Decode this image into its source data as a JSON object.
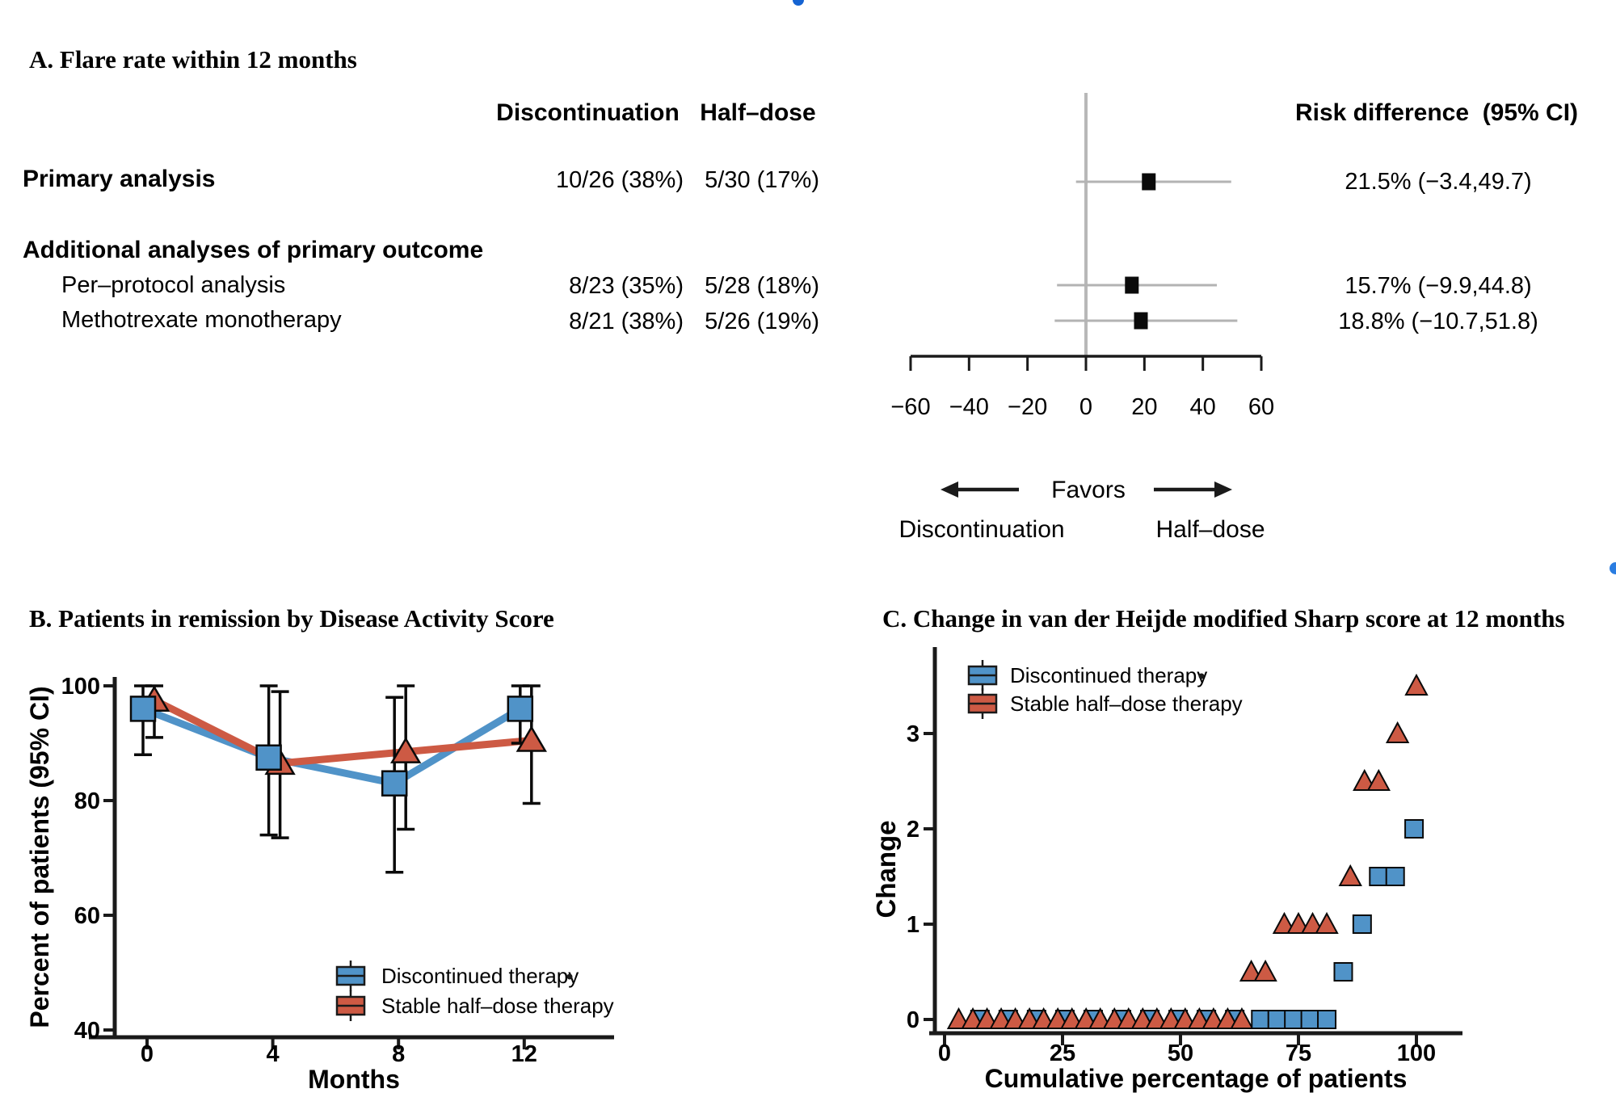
{
  "page": {
    "artifacts": {
      "top_dot_color": "#1563d2",
      "right_dot_color": "#2a7de1"
    },
    "colors": {
      "blue": "#5093c8",
      "red": "#cd5a44",
      "ci_gray": "#b3b3b3",
      "axis_black": "#1a1a1a"
    }
  },
  "chart_data": [
    {
      "id": "panel_a",
      "type": "table",
      "title": "A. Flare rate within 12 months",
      "columns": [
        "Discontinuation",
        "Half–dose",
        "Risk difference  (95% CI)"
      ],
      "rows": [
        {
          "label": "Primary analysis",
          "style": "bold",
          "discontinuation": "10/26 (38%)",
          "half_dose": "5/30 (17%)",
          "risk_text": "21.5% (−3.4,49.7)",
          "estimate": 21.5,
          "ci_low": -3.4,
          "ci_high": 49.7
        },
        {
          "label": "Additional analyses of primary outcome",
          "style": "section"
        },
        {
          "label": "Per–protocol analysis",
          "style": "indent",
          "discontinuation": "8/23 (35%)",
          "half_dose": "5/28 (18%)",
          "risk_text": "15.7% (−9.9,44.8)",
          "estimate": 15.7,
          "ci_low": -9.9,
          "ci_high": 44.8
        },
        {
          "label": "Methotrexate monotherapy",
          "style": "indent",
          "discontinuation": "8/21 (38%)",
          "half_dose": "5/26 (19%)",
          "risk_text": "18.8% (−10.7,51.8)",
          "estimate": 18.8,
          "ci_low": -10.7,
          "ci_high": 51.8
        }
      ],
      "forest": {
        "xticks": [
          -60,
          -40,
          -20,
          0,
          20,
          40,
          60
        ],
        "xlim": [
          -60,
          60
        ],
        "zero_line": 0,
        "favors_label": "Favors",
        "favors_left": "Discontinuation",
        "favors_right": "Half–dose"
      }
    },
    {
      "id": "panel_b",
      "type": "line",
      "title": "B. Patients in remission by Disease Activity Score",
      "xlabel": "Months",
      "ylabel": "Percent of patients (95% CI)",
      "x": [
        0,
        4,
        8,
        12
      ],
      "xticks": [
        0,
        4,
        8,
        12
      ],
      "yticks": [
        40,
        60,
        80,
        100
      ],
      "ylim": [
        37,
        103
      ],
      "legend_position": "bottom-right-inside",
      "legend_outlier_dot": true,
      "series": [
        {
          "name": "Discontinued therapy",
          "marker": "square",
          "color": "#5093c8",
          "values": [
            96,
            87.5,
            83,
            96
          ],
          "ci_low": [
            88,
            74,
            67.5,
            90
          ],
          "ci_high": [
            100,
            100,
            98,
            100
          ]
        },
        {
          "name": "Stable half–dose therapy",
          "marker": "triangle",
          "color": "#cd5a44",
          "values": [
            97.5,
            86.5,
            88.5,
            90.5
          ],
          "ci_low": [
            91,
            73.5,
            75,
            79.5
          ],
          "ci_high": [
            100,
            99,
            100,
            100
          ]
        }
      ]
    },
    {
      "id": "panel_c",
      "type": "scatter",
      "title": "C. Change in van der Heijde modified Sharp score at 12 months",
      "xlabel": "Cumulative percentage of patients",
      "ylabel": "Change",
      "xticks": [
        0,
        25,
        50,
        75,
        100
      ],
      "yticks": [
        0,
        1,
        2,
        3
      ],
      "xlim": [
        -2,
        110
      ],
      "ylim": [
        -0.3,
        3.7
      ],
      "legend_position": "top-left-inside",
      "legend_outlier_dot": true,
      "series": [
        {
          "name": "Discontinued therapy",
          "marker": "square",
          "color": "#5093c8",
          "points": [
            [
              7.5,
              0
            ],
            [
              13.5,
              0
            ],
            [
              19.5,
              0
            ],
            [
              25.5,
              0
            ],
            [
              31.5,
              0
            ],
            [
              37.5,
              0
            ],
            [
              43.5,
              0
            ],
            [
              49.5,
              0
            ],
            [
              55.5,
              0
            ],
            [
              61.5,
              0
            ],
            [
              67,
              0
            ],
            [
              70.5,
              0
            ],
            [
              74,
              0
            ],
            [
              77.5,
              0
            ],
            [
              81,
              0
            ],
            [
              84.5,
              0.5
            ],
            [
              88.5,
              1
            ],
            [
              92,
              1.5
            ],
            [
              95.5,
              1.5
            ],
            [
              99.5,
              2
            ]
          ]
        },
        {
          "name": "Stable half–dose therapy",
          "marker": "triangle",
          "color": "#cd5a44",
          "points": [
            [
              3,
              0
            ],
            [
              6,
              0
            ],
            [
              9,
              0
            ],
            [
              12,
              0
            ],
            [
              15,
              0
            ],
            [
              18,
              0
            ],
            [
              21,
              0
            ],
            [
              24,
              0
            ],
            [
              27,
              0
            ],
            [
              30,
              0
            ],
            [
              33,
              0
            ],
            [
              36,
              0
            ],
            [
              39,
              0
            ],
            [
              42,
              0
            ],
            [
              45,
              0
            ],
            [
              48,
              0
            ],
            [
              51,
              0
            ],
            [
              54,
              0
            ],
            [
              57,
              0
            ],
            [
              60,
              0
            ],
            [
              63,
              0
            ],
            [
              65,
              0.5
            ],
            [
              68,
              0.5
            ],
            [
              72,
              1
            ],
            [
              75,
              1
            ],
            [
              78,
              1
            ],
            [
              81,
              1
            ],
            [
              86,
              1.5
            ],
            [
              89,
              2.5
            ],
            [
              92,
              2.5
            ],
            [
              96,
              3
            ],
            [
              100,
              3.5
            ]
          ]
        }
      ]
    }
  ]
}
